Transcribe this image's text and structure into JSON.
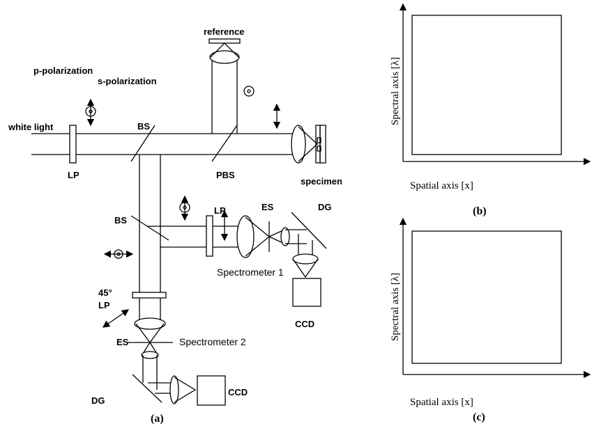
{
  "panel_a": {
    "labels": [
      "reference",
      "p-polarization",
      "s-polarization",
      "white light",
      "BS",
      "LP",
      "PBS",
      "specimen",
      "BS",
      "LP",
      "ES",
      "DG",
      "Spectrometer 1",
      "CCD",
      "45°",
      "LP",
      "ES",
      "Spectrometer 2",
      "DG",
      "CCD"
    ],
    "caption": "(a)"
  },
  "panel_b": {
    "y_axis": "Spectral axis [λ]",
    "x_axis": "Spatial axis [x]",
    "caption": "(b)"
  },
  "panel_c": {
    "y_axis": "Spectral axis [λ]",
    "x_axis": "Spatial axis [x]",
    "caption": "(c)"
  }
}
